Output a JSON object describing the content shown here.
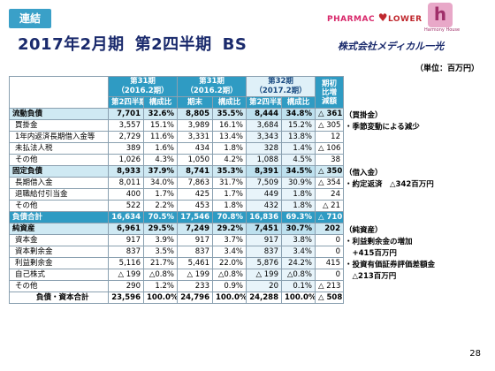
{
  "badge": "連結",
  "title": {
    "part1": "2017年2月期",
    "part2": "第2四半期",
    "part3": "BS"
  },
  "logos": {
    "pharmac": "PHARMAC",
    "flower": "LOWER",
    "harmony_letter": "h",
    "harmony_text": "Harmony House",
    "company": "株式会社メディカル一光"
  },
  "unit": "（単位：百万円）",
  "table": {
    "headers": {
      "p1": {
        "name": "第31期",
        "sub": "（2016.2期）",
        "col1": "第2四半期",
        "col2": "構成比"
      },
      "p2": {
        "name": "第31期",
        "sub": "（2016.2期）",
        "col1": "期末",
        "col2": "構成比"
      },
      "p3": {
        "name": "第32期",
        "sub": "（2017.2期）",
        "col1": "第2四半期",
        "col2": "構成比"
      },
      "diff": "期初比増減額"
    },
    "rows": [
      {
        "label": "流動負債",
        "type": "sec",
        "v1": "7,701",
        "r1": "32.6%",
        "v2": "8,805",
        "r2": "35.5%",
        "v3": "8,444",
        "r3": "34.8%",
        "d": "△ 361"
      },
      {
        "label": "買掛金",
        "type": "row",
        "v1": "3,557",
        "r1": "15.1%",
        "v2": "3,989",
        "r2": "16.1%",
        "v3": "3,684",
        "r3": "15.2%",
        "d": "△ 305"
      },
      {
        "label": "1年内返済長期借入金等",
        "type": "row",
        "v1": "2,729",
        "r1": "11.6%",
        "v2": "3,331",
        "r2": "13.4%",
        "v3": "3,343",
        "r3": "13.8%",
        "d": "12"
      },
      {
        "label": "未払法人税",
        "type": "row",
        "v1": "389",
        "r1": "1.6%",
        "v2": "434",
        "r2": "1.8%",
        "v3": "328",
        "r3": "1.4%",
        "d": "△ 106"
      },
      {
        "label": "その他",
        "type": "row",
        "v1": "1,026",
        "r1": "4.3%",
        "v2": "1,050",
        "r2": "4.2%",
        "v3": "1,088",
        "r3": "4.5%",
        "d": "38"
      },
      {
        "label": "固定負債",
        "type": "sec",
        "v1": "8,933",
        "r1": "37.9%",
        "v2": "8,741",
        "r2": "35.3%",
        "v3": "8,391",
        "r3": "34.5%",
        "d": "△ 350"
      },
      {
        "label": "長期借入金",
        "type": "row",
        "v1": "8,011",
        "r1": "34.0%",
        "v2": "7,863",
        "r2": "31.7%",
        "v3": "7,509",
        "r3": "30.9%",
        "d": "△ 354"
      },
      {
        "label": "退職給付引当金",
        "type": "row",
        "v1": "400",
        "r1": "1.7%",
        "v2": "425",
        "r2": "1.7%",
        "v3": "449",
        "r3": "1.8%",
        "d": "24"
      },
      {
        "label": "その他",
        "type": "row",
        "v1": "522",
        "r1": "2.2%",
        "v2": "453",
        "r2": "1.8%",
        "v3": "432",
        "r3": "1.8%",
        "d": "△ 21"
      },
      {
        "label": "負債合計",
        "type": "total",
        "v1": "16,634",
        "r1": "70.5%",
        "v2": "17,546",
        "r2": "70.8%",
        "v3": "16,836",
        "r3": "69.3%",
        "d": "△ 710"
      },
      {
        "label": "純資産",
        "type": "sec",
        "v1": "6,961",
        "r1": "29.5%",
        "v2": "7,249",
        "r2": "29.2%",
        "v3": "7,451",
        "r3": "30.7%",
        "d": "202"
      },
      {
        "label": "資本金",
        "type": "row",
        "v1": "917",
        "r1": "3.9%",
        "v2": "917",
        "r2": "3.7%",
        "v3": "917",
        "r3": "3.8%",
        "d": "0"
      },
      {
        "label": "資本剰余金",
        "type": "row",
        "v1": "837",
        "r1": "3.5%",
        "v2": "837",
        "r2": "3.4%",
        "v3": "837",
        "r3": "3.4%",
        "d": "0"
      },
      {
        "label": "利益剰余金",
        "type": "row",
        "v1": "5,116",
        "r1": "21.7%",
        "v2": "5,461",
        "r2": "22.0%",
        "v3": "5,876",
        "r3": "24.2%",
        "d": "415"
      },
      {
        "label": "自己株式",
        "type": "row",
        "v1": "△ 199",
        "r1": "△0.8%",
        "v2": "△ 199",
        "r2": "△0.8%",
        "v3": "△ 199",
        "r3": "△0.8%",
        "d": "0"
      },
      {
        "label": "その他",
        "type": "row",
        "v1": "290",
        "r1": "1.2%",
        "v2": "233",
        "r2": "0.9%",
        "v3": "20",
        "r3": "0.1%",
        "d": "△ 213"
      },
      {
        "label": "負債・資本合計",
        "type": "grand",
        "v1": "23,596",
        "r1": "100.0%",
        "v2": "24,796",
        "r2": "100.0%",
        "v3": "24,288",
        "r3": "100.0%",
        "d": "△ 508"
      }
    ]
  },
  "notes": [
    {
      "row": 0,
      "text": "（買掛金）"
    },
    {
      "row": 1,
      "text": "・季節変動による減少"
    },
    {
      "row": 5,
      "text": "（借入金）"
    },
    {
      "row": 6,
      "text": "・約定返済　△342百万円"
    },
    {
      "row": 10,
      "text": "（純資産）"
    },
    {
      "row": 11,
      "text": "・利益剰余金の増加"
    },
    {
      "row": 12,
      "text": "　+415百万円"
    },
    {
      "row": 13,
      "text": "・投資有価証券評価差額金"
    },
    {
      "row": 14,
      "text": "　△213百万円"
    }
  ],
  "page_number": "28"
}
